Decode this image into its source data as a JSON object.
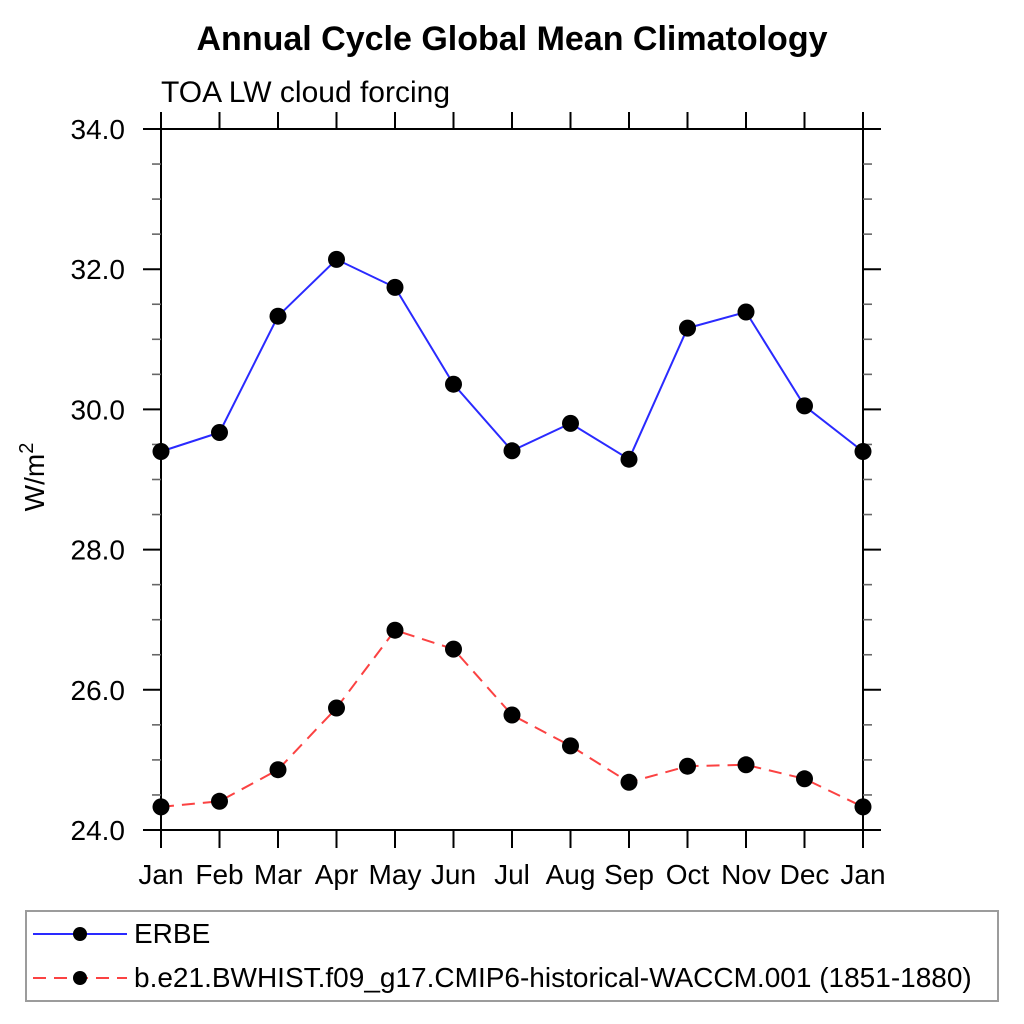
{
  "title": "Annual Cycle Global Mean Climatology",
  "subtitle": "TOA LW cloud forcing",
  "chart_data": {
    "type": "line",
    "title": "Annual Cycle Global Mean Climatology",
    "subtitle": "TOA LW cloud forcing",
    "ylabel_base": "W/m",
    "ylabel_sup": "2",
    "categories": [
      "Jan",
      "Feb",
      "Mar",
      "Apr",
      "May",
      "Jun",
      "Jul",
      "Aug",
      "Sep",
      "Oct",
      "Nov",
      "Dec",
      "Jan"
    ],
    "ylim": [
      24.0,
      34.0
    ],
    "ytick_major_interval": 2.0,
    "ytick_minor_interval": 0.5,
    "ytick_labels": [
      "24.0",
      "26.0",
      "28.0",
      "30.0",
      "32.0",
      "34.0"
    ],
    "grid": false,
    "legend_position": "bottom",
    "series": [
      {
        "name": "ERBE",
        "style": "solid",
        "color": "#2a2aff",
        "marker": "circle",
        "marker_color": "#000000",
        "values": [
          29.4,
          29.67,
          31.33,
          32.14,
          31.74,
          30.36,
          29.41,
          29.8,
          29.29,
          31.16,
          31.39,
          30.05,
          29.4
        ]
      },
      {
        "name": "b.e21.BWHIST.f09_g17.CMIP6-historical-WACCM.001 (1851-1880)",
        "style": "dashed",
        "color": "#fb4242",
        "marker": "circle",
        "marker_color": "#000000",
        "values": [
          24.33,
          24.41,
          24.86,
          25.74,
          26.85,
          26.58,
          25.64,
          25.2,
          24.68,
          24.91,
          24.93,
          24.73,
          24.33
        ]
      }
    ]
  },
  "colors": {
    "axis": "#000000",
    "minor_tick": "#666666",
    "legend_border": "#9c9c9c",
    "text": "#000000"
  }
}
